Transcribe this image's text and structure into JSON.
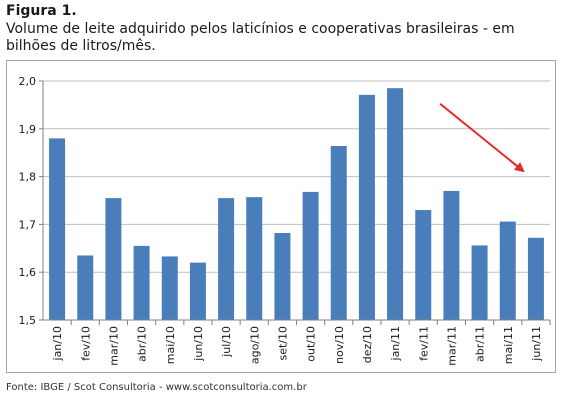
{
  "figure": {
    "label": "Figura 1.",
    "title": "Volume de leite adquirido pelos laticínios e cooperativas brasileiras - em bilhões de litros/mês.",
    "source": "Fonte: IBGE / Scot Consultoria - www.scotconsultoria.com.br"
  },
  "chart_data": {
    "type": "bar",
    "categories": [
      "jan/10",
      "fev/10",
      "mar/10",
      "abr/10",
      "mai/10",
      "jun/10",
      "jul/10",
      "ago/10",
      "set/10",
      "out/10",
      "nov/10",
      "dez/10",
      "jan/11",
      "fev/11",
      "mar/11",
      "abr/11",
      "mai/11",
      "jun/11"
    ],
    "values": [
      1.88,
      1.635,
      1.755,
      1.655,
      1.633,
      1.62,
      1.755,
      1.757,
      1.682,
      1.768,
      1.864,
      1.971,
      1.985,
      1.73,
      1.77,
      1.656,
      1.706,
      1.672
    ],
    "ylim": [
      1.5,
      2.0
    ],
    "yticks": [
      "1,5",
      "1,6",
      "1,7",
      "1,8",
      "1,9",
      "2,0"
    ],
    "grid": true,
    "bar_color": "#4a7ebb",
    "annotation": {
      "type": "arrow",
      "from_category": "jan/11",
      "to_category": "mai/11",
      "color": "#e32b2b"
    }
  }
}
